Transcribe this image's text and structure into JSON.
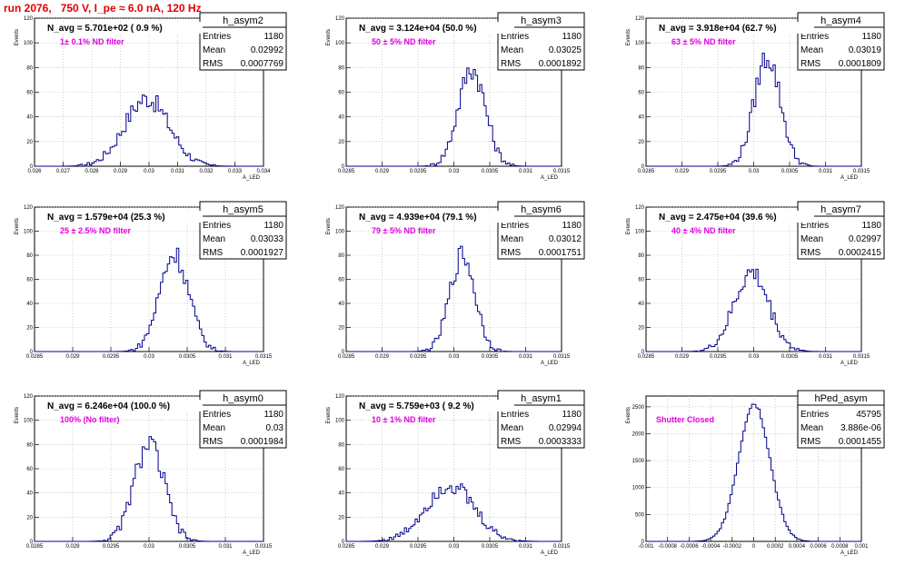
{
  "header": {
    "title": "run 2076,   750 V, I_pe ≈ 6.0 nA, 120 Hz"
  },
  "colors": {
    "line": "#00008b",
    "title": "#e00000",
    "annotation": "#e000e0",
    "grid": "#b0b0b0"
  },
  "chart_data": [
    {
      "type": "histogram",
      "title": "h_asym2",
      "xlabel": "A_LED",
      "ylabel": "Events",
      "xlim": [
        0.026,
        0.034
      ],
      "ylim": [
        0,
        120
      ],
      "xticks": [
        "0.026",
        "0.027",
        "0.028",
        "0.029",
        "0.03",
        "0.031",
        "0.032",
        "0.033",
        "0.034"
      ],
      "yticks": [
        "0",
        "20",
        "40",
        "60",
        "80",
        "100",
        "120"
      ],
      "stats": {
        "entries": "1180",
        "mean": "0.02992",
        "rms": "0.0007769"
      },
      "annotation_main": "N_avg = 5.701e+02 ( 0.9 %)",
      "annotation_sub": "1± 0.1% ND filter",
      "peak": 55
    },
    {
      "type": "histogram",
      "title": "h_asym3",
      "xlabel": "A_LED",
      "ylabel": "Events",
      "xlim": [
        0.0285,
        0.0315
      ],
      "ylim": [
        0,
        120
      ],
      "xticks": [
        "0.0285",
        "0.029",
        "0.0295",
        "0.03",
        "0.0305",
        "0.031",
        "0.0315"
      ],
      "yticks": [
        "0",
        "20",
        "40",
        "60",
        "80",
        "100",
        "120"
      ],
      "stats": {
        "entries": "1180",
        "mean": "0.03025",
        "rms": "0.0001892"
      },
      "annotation_main": "N_avg = 3.124e+04 (50.0 %)",
      "annotation_sub": "50 ± 5% ND filter",
      "peak": 79
    },
    {
      "type": "histogram",
      "title": "h_asym4",
      "xlabel": "A_LED",
      "ylabel": "Events",
      "xlim": [
        0.0285,
        0.0315
      ],
      "ylim": [
        0,
        120
      ],
      "xticks": [
        "0.0285",
        "0.029",
        "0.0295",
        "0.03",
        "0.0305",
        "0.031",
        "0.0315"
      ],
      "yticks": [
        "0",
        "20",
        "40",
        "60",
        "80",
        "100",
        "120"
      ],
      "stats": {
        "entries": "1180",
        "mean": "0.03019",
        "rms": "0.0001809"
      },
      "annotation_main": "N_avg = 3.918e+04 (62.7 %)",
      "annotation_sub": "63 ± 5% ND filter",
      "peak": 89
    },
    {
      "type": "histogram",
      "title": "h_asym5",
      "xlabel": "A_LED",
      "ylabel": "Events",
      "xlim": [
        0.0285,
        0.0315
      ],
      "ylim": [
        0,
        120
      ],
      "xticks": [
        "0.0285",
        "0.029",
        "0.0295",
        "0.03",
        "0.0305",
        "0.031",
        "0.0315"
      ],
      "yticks": [
        "0",
        "20",
        "40",
        "60",
        "80",
        "100",
        "120"
      ],
      "stats": {
        "entries": "1180",
        "mean": "0.03033",
        "rms": "0.0001927"
      },
      "annotation_main": "N_avg = 1.579e+04 (25.3 %)",
      "annotation_sub": "25 ± 2.5% ND filter",
      "peak": 81
    },
    {
      "type": "histogram",
      "title": "h_asym6",
      "xlabel": "A_LED",
      "ylabel": "Events",
      "xlim": [
        0.0285,
        0.0315
      ],
      "ylim": [
        0,
        120
      ],
      "xticks": [
        "0.0285",
        "0.029",
        "0.0295",
        "0.03",
        "0.0305",
        "0.031",
        "0.0315"
      ],
      "yticks": [
        "0",
        "20",
        "40",
        "60",
        "80",
        "100",
        "120"
      ],
      "stats": {
        "entries": "1180",
        "mean": "0.03012",
        "rms": "0.0001751"
      },
      "annotation_main": "N_avg = 4.939e+04 (79.1 %)",
      "annotation_sub": "79 ± 5% ND filter",
      "peak": 80
    },
    {
      "type": "histogram",
      "title": "h_asym7",
      "xlabel": "A_LED",
      "ylabel": "Events",
      "xlim": [
        0.0285,
        0.0315
      ],
      "ylim": [
        0,
        120
      ],
      "xticks": [
        "0.0285",
        "0.029",
        "0.0295",
        "0.03",
        "0.0305",
        "0.031",
        "0.0315"
      ],
      "yticks": [
        "0",
        "20",
        "40",
        "60",
        "80",
        "100",
        "120"
      ],
      "stats": {
        "entries": "1180",
        "mean": "0.02997",
        "rms": "0.0002415"
      },
      "annotation_main": "N_avg = 2.475e+04 (39.6 %)",
      "annotation_sub": "40 ± 4% ND filter",
      "peak": 65
    },
    {
      "type": "histogram",
      "title": "h_asym0",
      "xlabel": "A_LED",
      "ylabel": "Events",
      "xlim": [
        0.0285,
        0.0315
      ],
      "ylim": [
        0,
        120
      ],
      "xticks": [
        "0.0285",
        "0.029",
        "0.0295",
        "0.03",
        "0.0305",
        "0.031",
        "0.0315"
      ],
      "yticks": [
        "0",
        "20",
        "40",
        "60",
        "80",
        "100",
        "120"
      ],
      "stats": {
        "entries": "1180",
        "mean": "0.03",
        "rms": "0.0001984"
      },
      "annotation_main": "N_avg = 6.246e+04 (100.0 %)",
      "annotation_sub": "100% (No filter)",
      "peak": 80
    },
    {
      "type": "histogram",
      "title": "h_asym1",
      "xlabel": "A_LED",
      "ylabel": "Events",
      "xlim": [
        0.0285,
        0.0315
      ],
      "ylim": [
        0,
        120
      ],
      "xticks": [
        "0.0285",
        "0.029",
        "0.0295",
        "0.03",
        "0.0305",
        "0.031",
        "0.0315"
      ],
      "yticks": [
        "0",
        "20",
        "40",
        "60",
        "80",
        "100",
        "120"
      ],
      "stats": {
        "entries": "1180",
        "mean": "0.02994",
        "rms": "0.0003333"
      },
      "annotation_main": "N_avg = 5.759e+03 ( 9.2 %)",
      "annotation_sub": "10 ± 1% ND filter",
      "peak": 47
    },
    {
      "type": "histogram",
      "title": "hPed_asym",
      "xlabel": "A_LED",
      "ylabel": "Events",
      "xlim": [
        -0.001,
        0.001
      ],
      "ylim": [
        0,
        2700
      ],
      "xticks": [
        "-0.001",
        "-0.0008",
        "-0.0006",
        "-0.0004",
        "-0.0002",
        "0",
        "0.0002",
        "0.0004",
        "0.0006",
        "0.0008",
        "0.001"
      ],
      "yticks": [
        "0",
        "500",
        "1000",
        "1500",
        "2000",
        "2500"
      ],
      "stats": {
        "entries": "45795",
        "mean": "3.886e-06",
        "rms": "0.0001455"
      },
      "annotation_main": "",
      "annotation_sub": "Shutter Closed",
      "peak": 2560
    }
  ]
}
